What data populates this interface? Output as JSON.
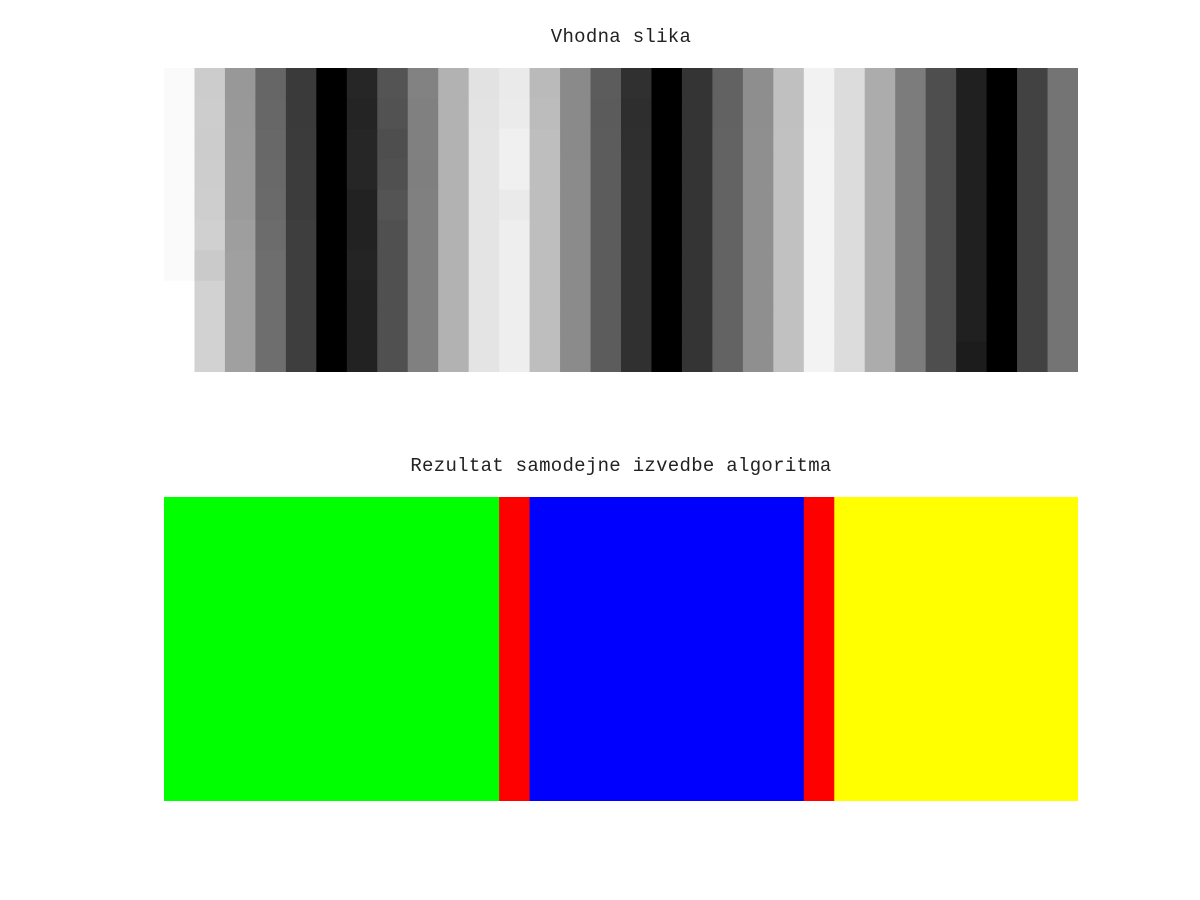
{
  "chart_data": [
    {
      "type": "heatmap",
      "title": "Vhodna slika",
      "colormap": "gray",
      "columns": 30,
      "rows": 10,
      "values": [
        [
          250,
          204,
          152,
          102,
          58,
          0,
          38,
          84,
          130,
          178,
          226,
          234,
          186,
          138,
          92,
          48,
          0,
          52,
          98,
          142,
          192,
          242,
          220,
          172,
          124,
          78,
          32,
          0,
          66,
          116
        ],
        [
          250,
          205,
          153,
          103,
          58,
          0,
          36,
          82,
          128,
          178,
          227,
          235,
          188,
          138,
          91,
          46,
          0,
          52,
          98,
          142,
          192,
          242,
          220,
          172,
          124,
          78,
          32,
          0,
          66,
          116
        ],
        [
          250,
          204,
          154,
          104,
          59,
          0,
          38,
          78,
          128,
          178,
          228,
          240,
          190,
          138,
          92,
          47,
          0,
          52,
          99,
          143,
          193,
          243,
          220,
          172,
          124,
          78,
          32,
          0,
          66,
          116
        ],
        [
          250,
          205,
          155,
          105,
          60,
          0,
          38,
          80,
          127,
          178,
          228,
          240,
          190,
          139,
          92,
          48,
          0,
          52,
          99,
          143,
          193,
          243,
          220,
          172,
          124,
          78,
          32,
          0,
          66,
          116
        ],
        [
          250,
          206,
          155,
          106,
          60,
          0,
          34,
          84,
          128,
          178,
          228,
          234,
          190,
          139,
          92,
          48,
          0,
          52,
          99,
          143,
          193,
          243,
          220,
          172,
          124,
          78,
          32,
          0,
          66,
          116
        ],
        [
          250,
          208,
          158,
          108,
          62,
          0,
          34,
          80,
          128,
          178,
          228,
          238,
          190,
          139,
          92,
          48,
          0,
          52,
          99,
          143,
          193,
          243,
          220,
          172,
          124,
          78,
          32,
          0,
          66,
          116
        ],
        [
          250,
          202,
          160,
          110,
          62,
          0,
          36,
          80,
          128,
          178,
          228,
          238,
          190,
          139,
          92,
          48,
          0,
          52,
          99,
          143,
          193,
          243,
          220,
          172,
          124,
          78,
          32,
          0,
          66,
          116
        ],
        [
          255,
          210,
          160,
          110,
          62,
          0,
          34,
          80,
          128,
          178,
          228,
          238,
          190,
          139,
          92,
          48,
          0,
          52,
          99,
          143,
          193,
          243,
          220,
          172,
          124,
          78,
          32,
          0,
          66,
          116
        ],
        [
          255,
          210,
          160,
          110,
          62,
          0,
          34,
          80,
          128,
          178,
          228,
          238,
          190,
          139,
          92,
          48,
          0,
          52,
          99,
          143,
          193,
          243,
          220,
          172,
          124,
          78,
          32,
          0,
          66,
          116
        ],
        [
          255,
          210,
          160,
          110,
          62,
          0,
          34,
          80,
          128,
          178,
          228,
          238,
          190,
          139,
          92,
          48,
          0,
          52,
          99,
          143,
          193,
          243,
          220,
          172,
          124,
          78,
          28,
          0,
          66,
          116
        ]
      ]
    },
    {
      "type": "heatmap",
      "title": "Rezultat samodejne izvedbe algoritma",
      "colormap": "label",
      "columns": 30,
      "segments": [
        {
          "label": "green",
          "color": "#00ff00",
          "column_count": 11
        },
        {
          "label": "red",
          "color": "#ff0000",
          "column_count": 1
        },
        {
          "label": "blue",
          "color": "#0000ff",
          "column_count": 9
        },
        {
          "label": "red",
          "color": "#ff0000",
          "column_count": 1
        },
        {
          "label": "yellow",
          "color": "#ffff00",
          "column_count": 8
        }
      ]
    }
  ]
}
